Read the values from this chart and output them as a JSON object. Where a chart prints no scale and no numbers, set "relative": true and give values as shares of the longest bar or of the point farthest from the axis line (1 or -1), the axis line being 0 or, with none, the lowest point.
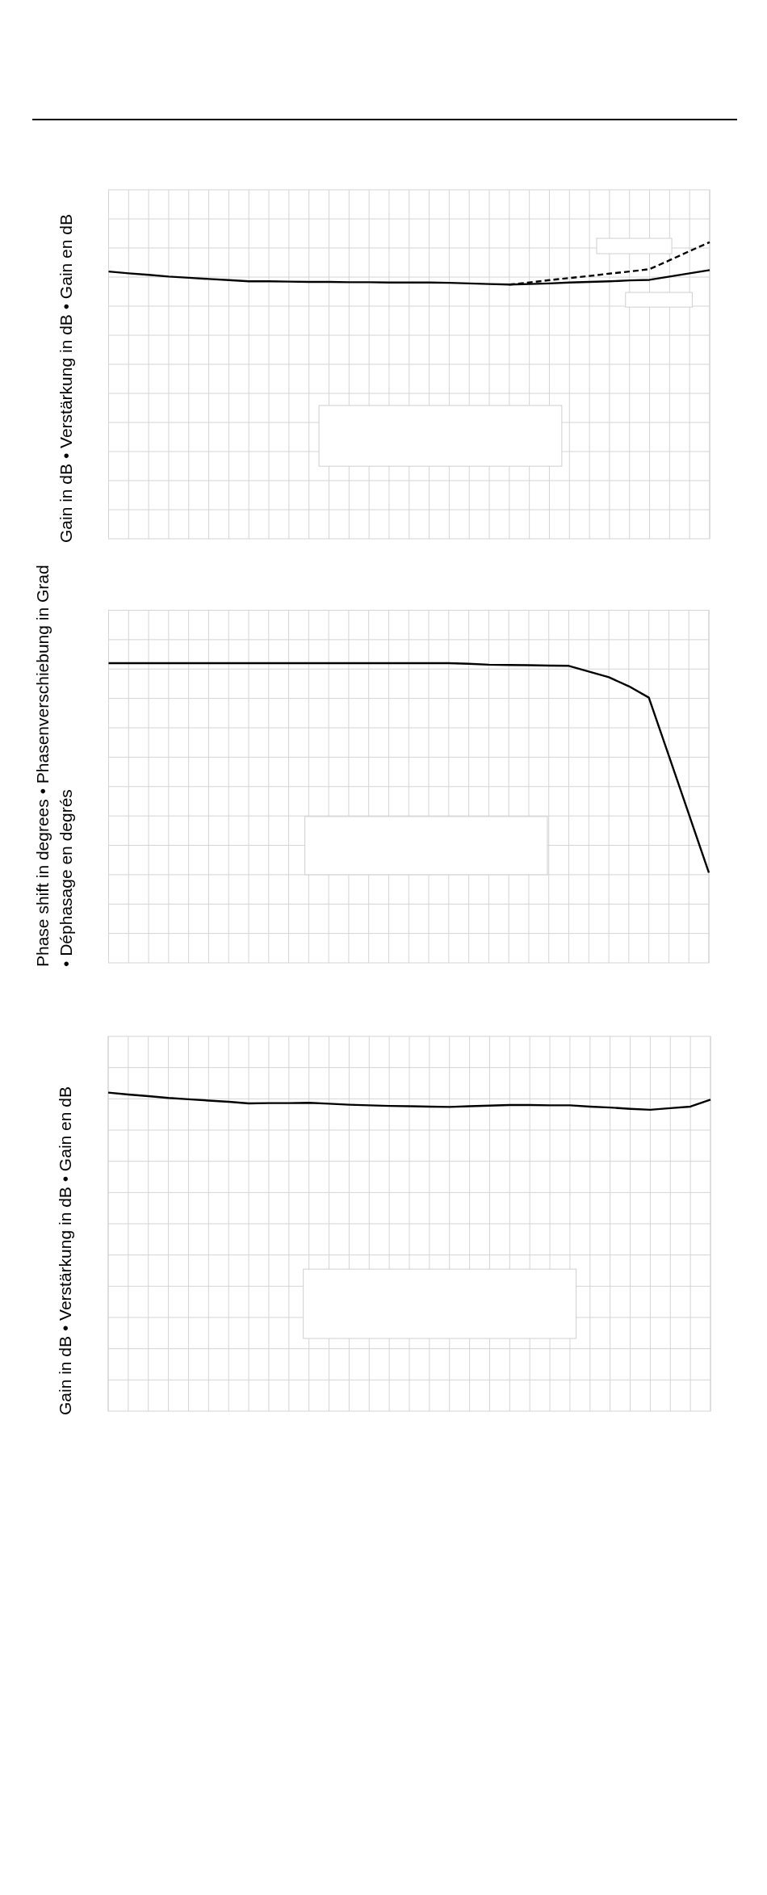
{
  "chart_data": [
    {
      "type": "line",
      "ylabel": "Gain in dB • Verstärkung in dB • Gain en dB",
      "relative": true,
      "grid": true,
      "categories": [
        null,
        null,
        null,
        null,
        null,
        null,
        null,
        null,
        null,
        null,
        null,
        null,
        null,
        null,
        null,
        null,
        null,
        null,
        null,
        null,
        null,
        null,
        null,
        null,
        null,
        null,
        null,
        null,
        null,
        null,
        null
      ],
      "series": [
        {
          "color": "#000000",
          "values": [
            0.901,
            0.895,
            0.89,
            0.884,
            0.88,
            0.876,
            0.872,
            0.868,
            0.868,
            0.867,
            0.866,
            0.866,
            0.865,
            0.865,
            0.864,
            0.864,
            0.864,
            0.863,
            0.861,
            0.859,
            0.857,
            0.859,
            0.861,
            0.864,
            0.866,
            0.868,
            0.871,
            0.873,
            0.884,
            0.895,
            0.906
          ]
        },
        {
          "color": "#000000",
          "line_style": "dashed",
          "values": [
            null,
            null,
            null,
            null,
            null,
            null,
            null,
            null,
            null,
            null,
            null,
            null,
            null,
            null,
            null,
            null,
            null,
            null,
            null,
            null,
            0.857,
            0.864,
            0.872,
            0.879,
            0.886,
            0.894,
            0.901,
            0.909,
            0.939,
            0.97,
            1
          ]
        }
      ]
    },
    {
      "type": "line",
      "ylabel": "Phase shift in degrees • Phasenverschiebung in Grad • Déphasage en degrés",
      "relative": true,
      "grid": true,
      "categories": [
        null,
        null,
        null,
        null,
        null,
        null,
        null,
        null,
        null,
        null,
        null,
        null,
        null,
        null,
        null,
        null,
        null,
        null,
        null,
        null,
        null,
        null,
        null,
        null,
        null,
        null,
        null,
        null,
        null,
        null,
        null
      ],
      "series": [
        {
          "color": "#000000",
          "values": [
            1,
            1,
            1,
            1,
            1,
            1,
            1,
            1,
            1,
            1,
            1,
            1,
            1,
            1,
            1,
            1,
            1,
            1,
            0.998,
            0.995,
            0.994,
            0.993,
            0.992,
            0.991,
            0.972,
            0.953,
            0.923,
            0.885,
            0.691,
            0.496,
            0.301
          ]
        }
      ]
    },
    {
      "type": "line",
      "ylabel": "Gain in dB • Verstärkung in dB • Gain en dB",
      "relative": true,
      "grid": true,
      "categories": [
        null,
        null,
        null,
        null,
        null,
        null,
        null,
        null,
        null,
        null,
        null,
        null,
        null,
        null,
        null,
        null,
        null,
        null,
        null,
        null,
        null,
        null,
        null,
        null,
        null,
        null,
        null,
        null,
        null,
        null,
        null
      ],
      "series": [
        {
          "color": "#000000",
          "values": [
            1,
            0.994,
            0.989,
            0.983,
            0.979,
            0.975,
            0.971,
            0.966,
            0.967,
            0.967,
            0.968,
            0.965,
            0.962,
            0.96,
            0.958,
            0.957,
            0.956,
            0.955,
            0.957,
            0.959,
            0.961,
            0.961,
            0.96,
            0.96,
            0.956,
            0.953,
            0.949,
            0.946,
            0.951,
            0.956,
            0.978
          ]
        }
      ]
    }
  ]
}
